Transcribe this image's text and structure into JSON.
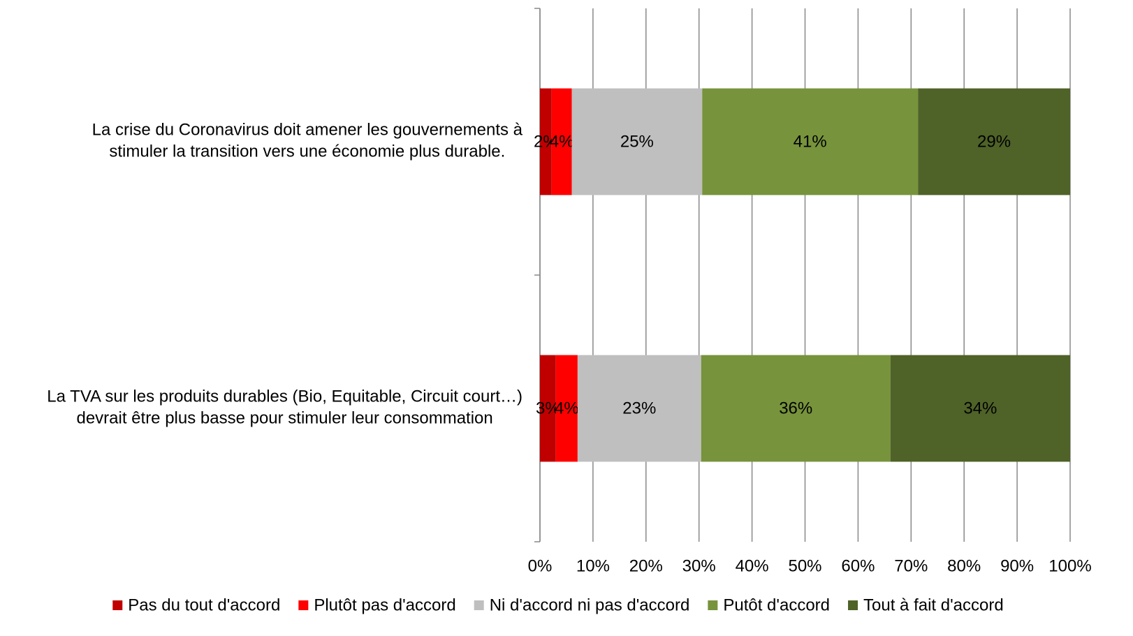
{
  "chart_data": {
    "type": "bar",
    "orientation": "horizontal",
    "stacked": true,
    "categories": [
      [
        "La crise du Coronavirus doit amener les gouvernements à",
        "stimuler la transition vers une économie plus durable."
      ],
      [
        "La TVA sur les produits durables (Bio, Equitable, Circuit court…)",
        "devrait être plus basse pour stimuler leur consommation"
      ]
    ],
    "series": [
      {
        "name": "Pas du tout d'accord",
        "color": "#c00000",
        "values": [
          2.2,
          3.0
        ],
        "value_labels": [
          "2%",
          "3%"
        ]
      },
      {
        "name": "Plutôt pas d'accord",
        "color": "#ff0000",
        "values": [
          3.8,
          4.1
        ],
        "value_labels": [
          "4%",
          "4%"
        ]
      },
      {
        "name": "Ni d'accord ni pas d'accord",
        "color": "#bfbfbf",
        "values": [
          24.6,
          23.3
        ],
        "value_labels": [
          "25%",
          "23%"
        ]
      },
      {
        "name": "Putôt d'accord",
        "color": "#77933c",
        "values": [
          40.7,
          35.7
        ],
        "value_labels": [
          "41%",
          "36%"
        ]
      },
      {
        "name": "Tout à fait d'accord",
        "color": "#4f6228",
        "values": [
          28.7,
          33.9
        ],
        "value_labels": [
          "29%",
          "34%"
        ]
      }
    ],
    "xlim": [
      0,
      100
    ],
    "xticks": [
      {
        "value": 0,
        "label": "0%"
      },
      {
        "value": 10,
        "label": "10%"
      },
      {
        "value": 20,
        "label": "20%"
      },
      {
        "value": 30,
        "label": "30%"
      },
      {
        "value": 40,
        "label": "40%"
      },
      {
        "value": 50,
        "label": "50%"
      },
      {
        "value": 60,
        "label": "60%"
      },
      {
        "value": 70,
        "label": "70%"
      },
      {
        "value": 80,
        "label": "80%"
      },
      {
        "value": 90,
        "label": "90%"
      },
      {
        "value": 100,
        "label": "100%"
      }
    ],
    "grid": true,
    "legend": "bottom"
  }
}
